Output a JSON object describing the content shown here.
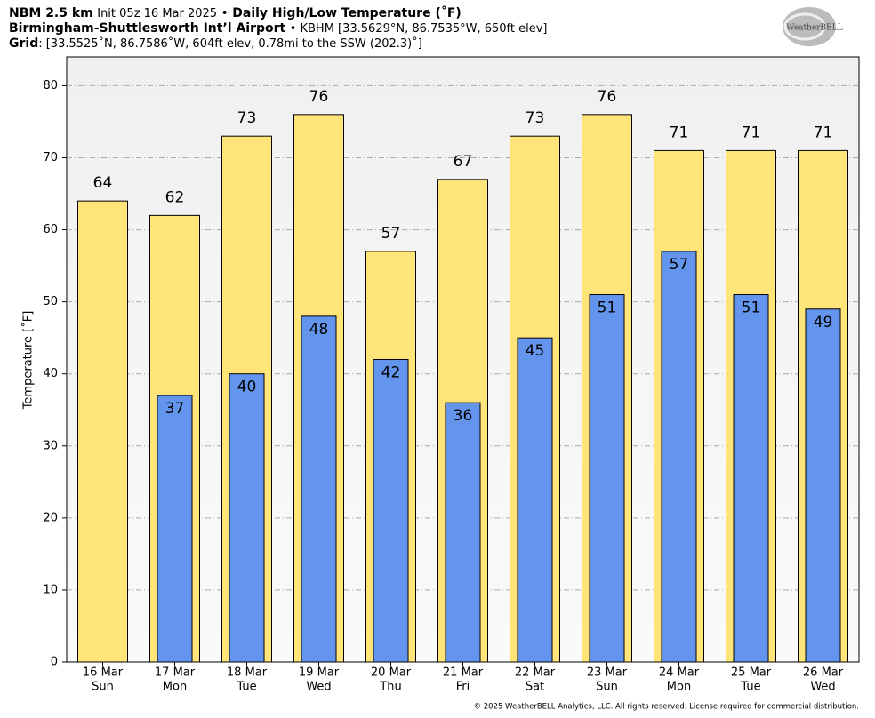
{
  "header": {
    "model": "NBM 2.5 km",
    "init": "Init 05z 16 Mar 2025",
    "sep": "•",
    "product": "Daily High/Low Temperature (˚F)",
    "station": "Birmingham-Shuttlesworth Int’l Airport",
    "station_info": "• KBHM [33.5629°N, 86.7535°W, 650ft elev]",
    "grid_label": "Grid",
    "grid_info": ": [33.5525˚N, 86.7586˚W, 604ft elev, 0.78mi to the SSW (202.3)˚]"
  },
  "logo": "WeatherBELL",
  "footer": "© 2025 WeatherBELL Analytics, LLC. All rights reserved. License required for commercial distribution.",
  "chart_data": {
    "type": "bar",
    "y_label": "Temperature [˚F]",
    "categories": [
      "16 Mar",
      "17 Mar",
      "18 Mar",
      "19 Mar",
      "20 Mar",
      "21 Mar",
      "22 Mar",
      "23 Mar",
      "24 Mar",
      "25 Mar",
      "26 Mar"
    ],
    "weekdays": [
      "Sun",
      "Mon",
      "Tue",
      "Wed",
      "Thu",
      "Fri",
      "Sat",
      "Sun",
      "Mon",
      "Tue",
      "Wed"
    ],
    "series": [
      {
        "color": "#ffe47a",
        "values": [
          64,
          62,
          73,
          76,
          57,
          67,
          73,
          76,
          71,
          71,
          71
        ]
      },
      {
        "color": "#6495ed",
        "values": [
          null,
          37,
          40,
          48,
          42,
          36,
          45,
          51,
          57,
          51,
          49
        ]
      }
    ],
    "ylim": [
      0,
      84
    ],
    "yticks": [
      0,
      10,
      20,
      30,
      40,
      50,
      60,
      70,
      80
    ],
    "grid": true
  }
}
